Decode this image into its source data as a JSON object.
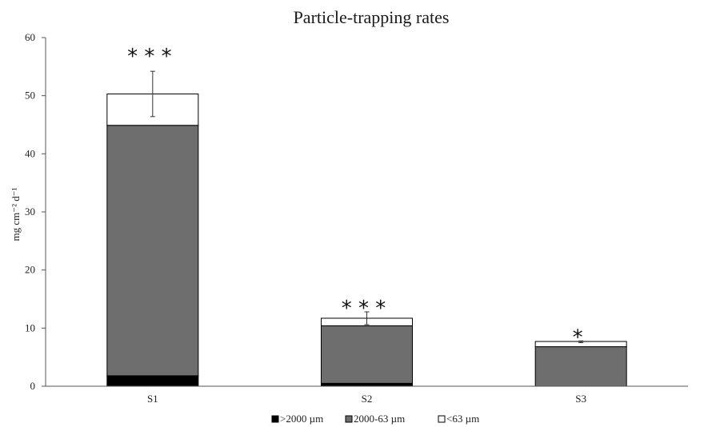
{
  "chart_data": {
    "type": "bar",
    "stacked": true,
    "title": "Particle-trapping rates",
    "ylabel": "mg cm⁻² d⁻¹",
    "xlabel": "",
    "ylim": [
      0,
      60
    ],
    "yticks": [
      0,
      10,
      20,
      30,
      40,
      50,
      60
    ],
    "categories": [
      "S1",
      "S2",
      "S3"
    ],
    "series": [
      {
        "name": ">2000 µm",
        "color": "#000000",
        "values": [
          1.8,
          0.5,
          0.0
        ]
      },
      {
        "name": "2000-63 µm",
        "color": "#6e6e6e",
        "values": [
          43.1,
          9.9,
          6.8
        ]
      },
      {
        "name": "<63 µm",
        "color": "#ffffff",
        "values": [
          5.4,
          1.3,
          0.9
        ]
      }
    ],
    "error_bars": [
      {
        "low": 46.4,
        "high": 54.2
      },
      {
        "low": 10.6,
        "high": 12.8
      },
      {
        "low": 7.5,
        "high": 7.8
      }
    ],
    "significance": [
      "* * *",
      "* * *",
      "*"
    ],
    "legend_position": "bottom",
    "grid": false
  }
}
